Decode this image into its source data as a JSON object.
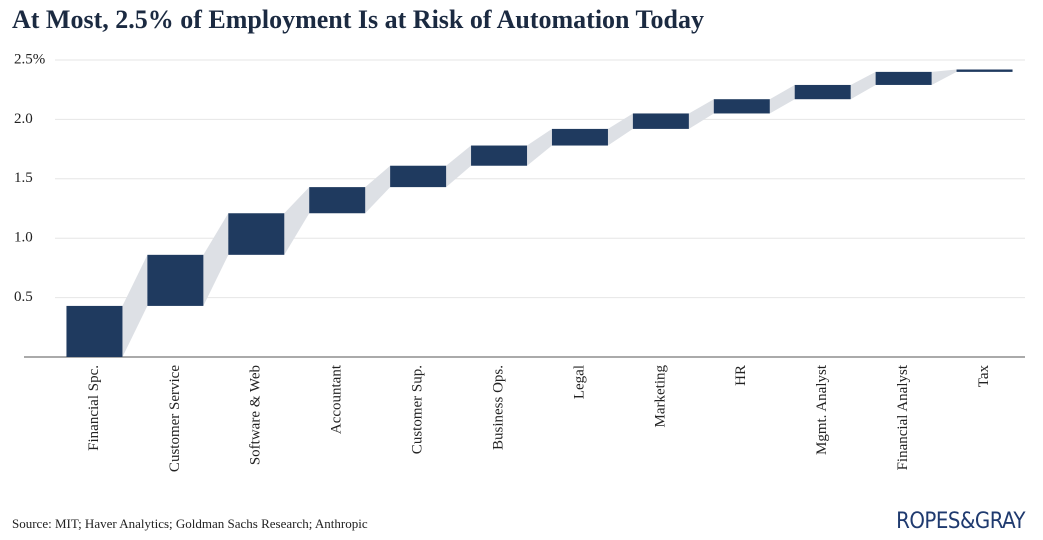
{
  "chart_data": {
    "type": "waterfall",
    "title": "At Most, 2.5% of Employment Is at Risk of Automation Today",
    "source": "Source: MIT; Haver Analytics; Goldman Sachs Research; Anthropic",
    "categories": [
      "Financial Spc.",
      "Customer Service",
      "Software & Web",
      "Accountant",
      "Customer Sup.",
      "Business Ops.",
      "Legal",
      "Marketing",
      "HR",
      "Mgmt. Analyst",
      "Financial Analyst",
      "Tax"
    ],
    "values": [
      0.43,
      0.43,
      0.35,
      0.22,
      0.18,
      0.17,
      0.14,
      0.13,
      0.12,
      0.12,
      0.11,
      0.02
    ],
    "color": "#1f3a5f",
    "connector_color": "#dde0e5",
    "ylim": [
      0,
      2.5
    ],
    "yticks": [
      0.5,
      {
        "value": 1,
        "label": "1.0"
      },
      1.5,
      {
        "value": 2,
        "label": "2.0"
      },
      {
        "value": 2.5,
        "label": "2.5%"
      }
    ],
    "grid": true
  },
  "logo": "ROPES&GRAY"
}
